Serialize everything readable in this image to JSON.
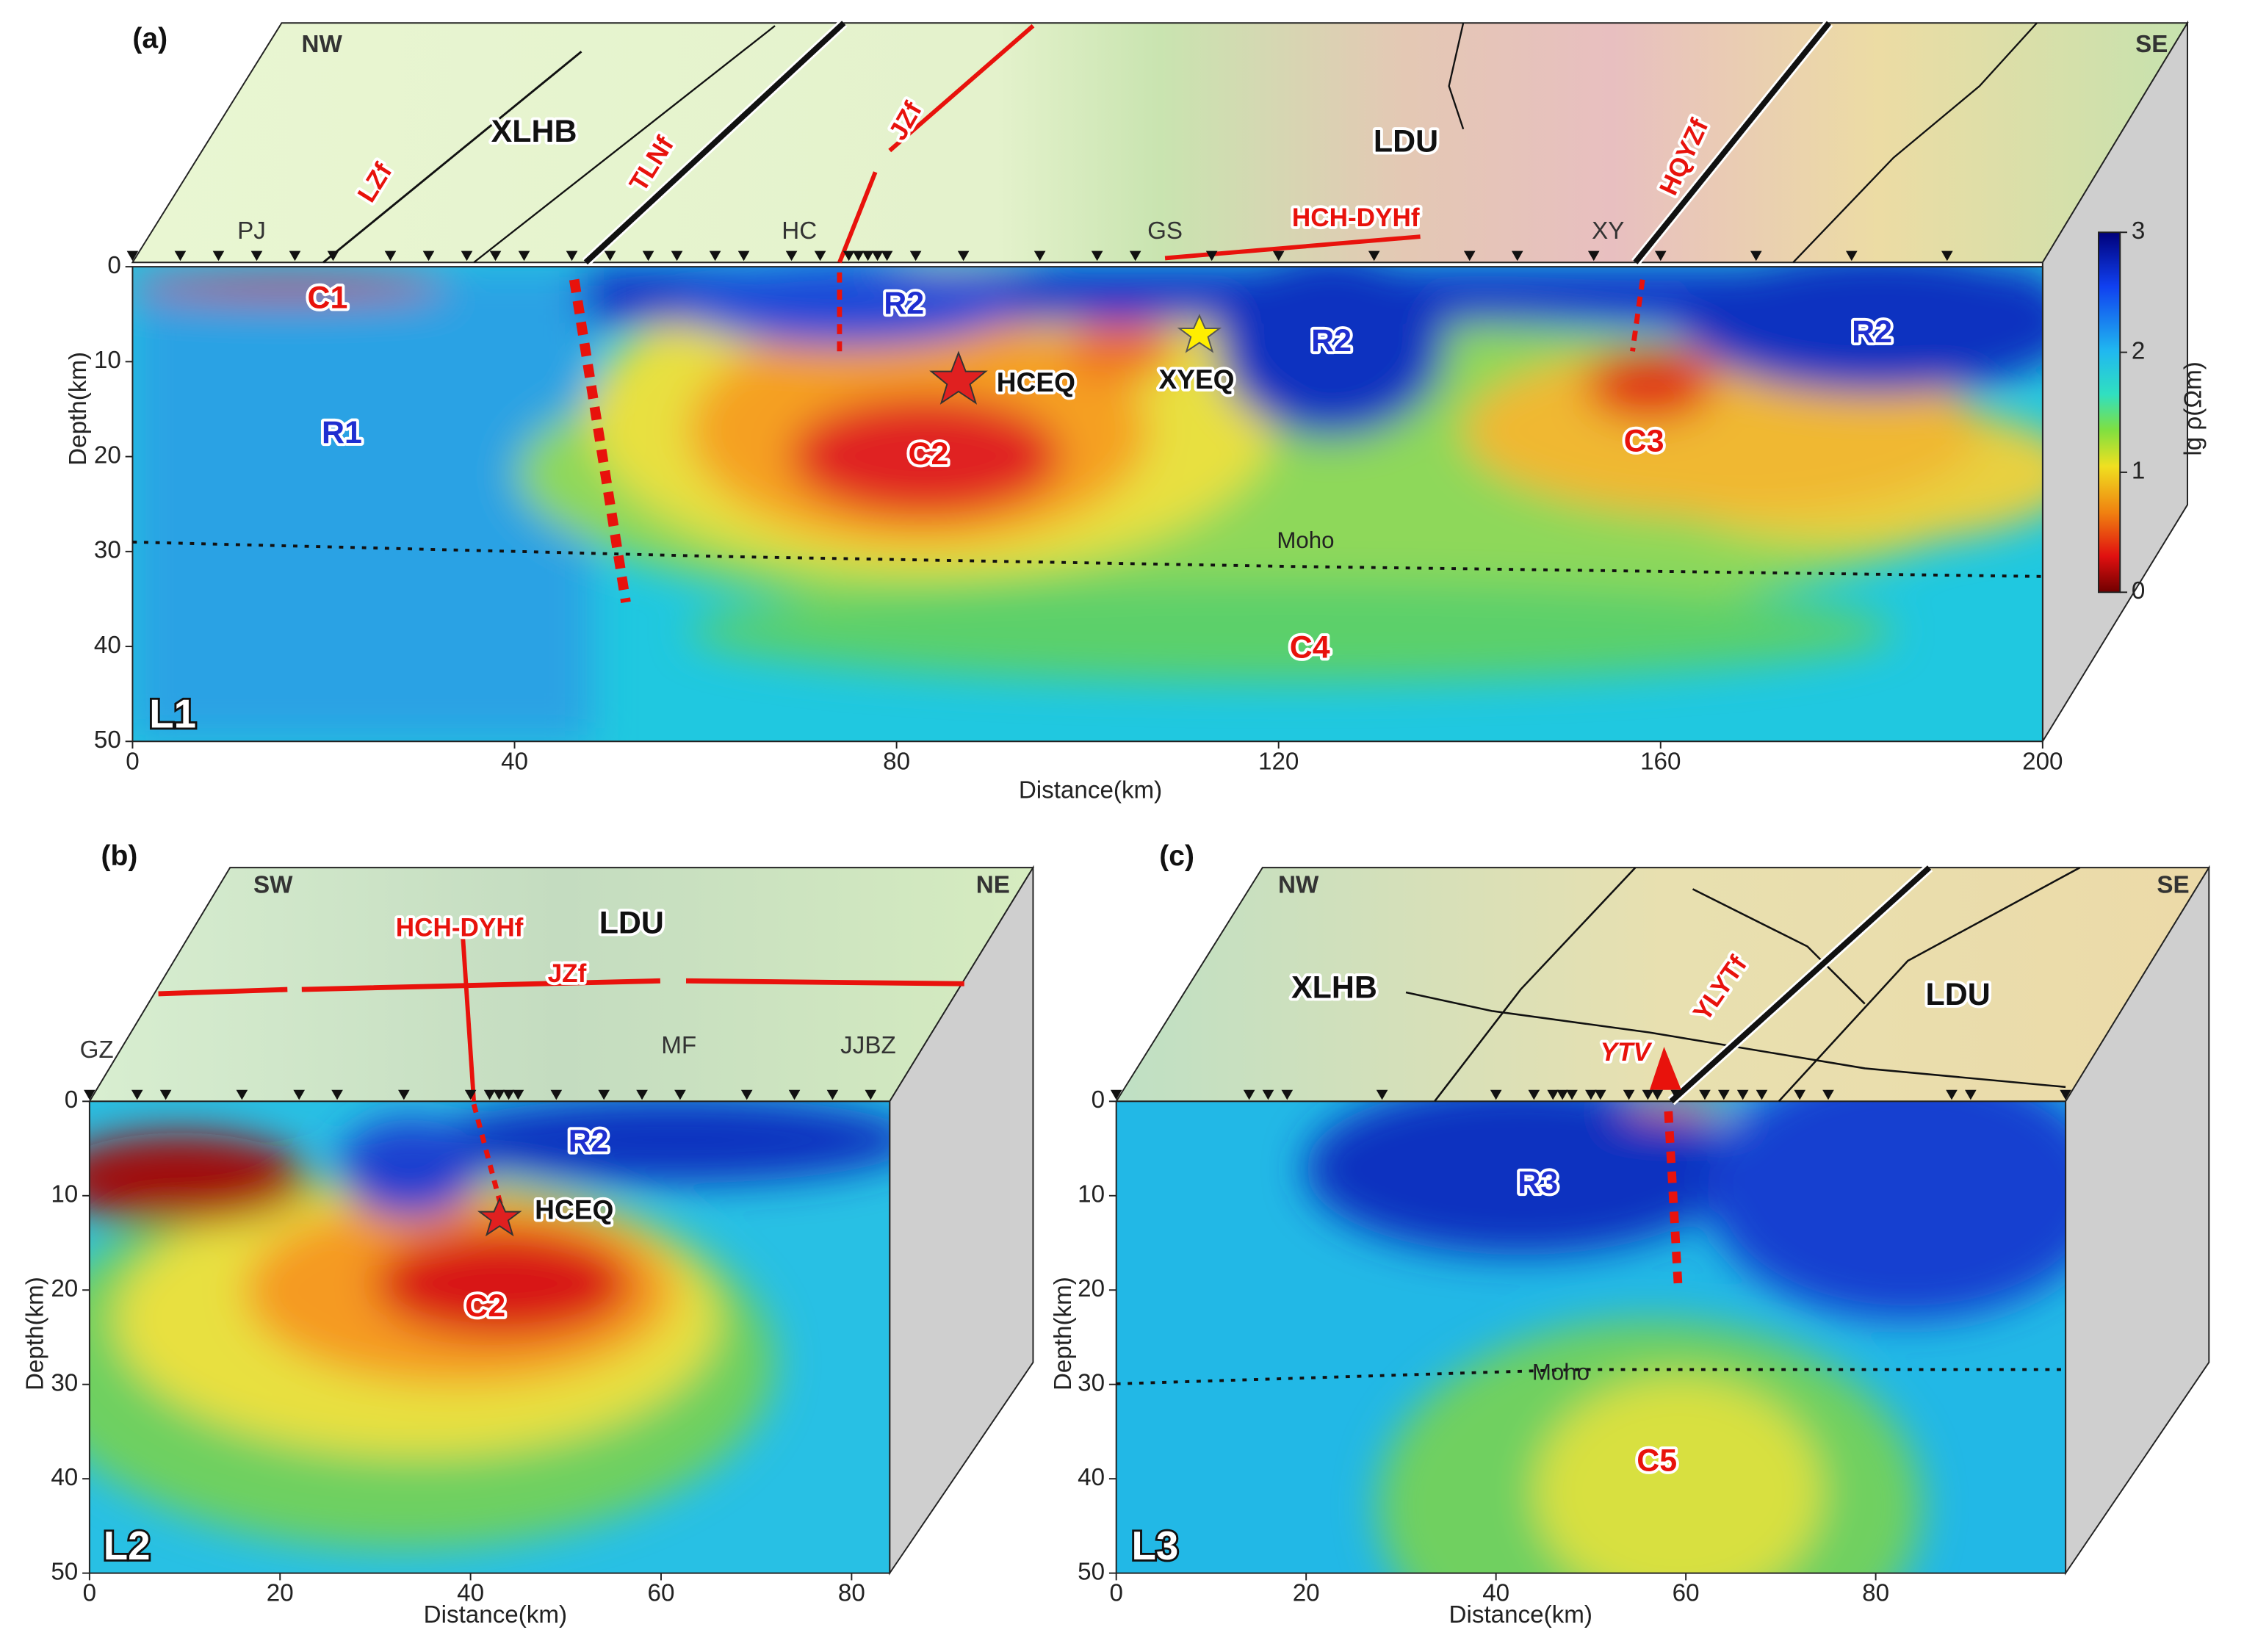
{
  "panels": [
    {
      "label": "(a)",
      "profile": "L1",
      "directions": [
        "NW",
        "SE"
      ],
      "blocks": [
        "XLHB",
        "LDU"
      ],
      "faults": [
        "LZf",
        "TLNf",
        "JZf",
        "HQYZf",
        "HCH-DYHf"
      ],
      "sites": [
        "PJ",
        "HC",
        "GS",
        "XY"
      ],
      "anomalies": [
        "C1",
        "R2",
        "R2",
        "R2",
        "R1",
        "C2",
        "C3",
        "C4"
      ],
      "earthquakes": [
        "HCEQ",
        "XYEQ"
      ],
      "moho": "Moho",
      "xlabel": "Distance(km)",
      "ylabel": "Depth(km)",
      "xlim": [
        0,
        200
      ],
      "ylim": [
        0,
        50
      ],
      "xticks": [
        0,
        40,
        80,
        120,
        160,
        200
      ],
      "yticks": [
        0,
        10,
        20,
        30,
        40,
        50
      ]
    },
    {
      "label": "(b)",
      "profile": "L2",
      "directions": [
        "SW",
        "NE"
      ],
      "blocks": [
        "LDU"
      ],
      "faults": [
        "HCH-DYHf",
        "JZf"
      ],
      "sites": [
        "GZ",
        "MF",
        "JJBZ"
      ],
      "anomalies": [
        "R2",
        "C2"
      ],
      "earthquakes": [
        "HCEQ"
      ],
      "xlabel": "Distance(km)",
      "ylabel": "Depth(km)",
      "xlim": [
        0,
        84
      ],
      "ylim": [
        0,
        50
      ],
      "xticks": [
        0,
        20,
        40,
        60,
        80
      ],
      "yticks": [
        0,
        10,
        20,
        30,
        40,
        50
      ]
    },
    {
      "label": "(c)",
      "profile": "L3",
      "directions": [
        "NW",
        "SE"
      ],
      "blocks": [
        "XLHB",
        "LDU"
      ],
      "faults": [
        "YLYTf"
      ],
      "volcano": "YTV",
      "anomalies": [
        "R3",
        "C5"
      ],
      "moho": "Moho",
      "xlabel": "Distance(km)",
      "ylabel": "Depth(km)",
      "xlim": [
        0,
        100
      ],
      "ylim": [
        0,
        50
      ],
      "xticks": [
        0,
        20,
        40,
        60,
        80
      ],
      "yticks": [
        0,
        10,
        20,
        30,
        40,
        50
      ]
    }
  ],
  "colorbar": {
    "title": "lg ρ(Ωm)",
    "lim": [
      0,
      3
    ],
    "ticks": [
      0,
      1,
      2,
      3
    ]
  }
}
